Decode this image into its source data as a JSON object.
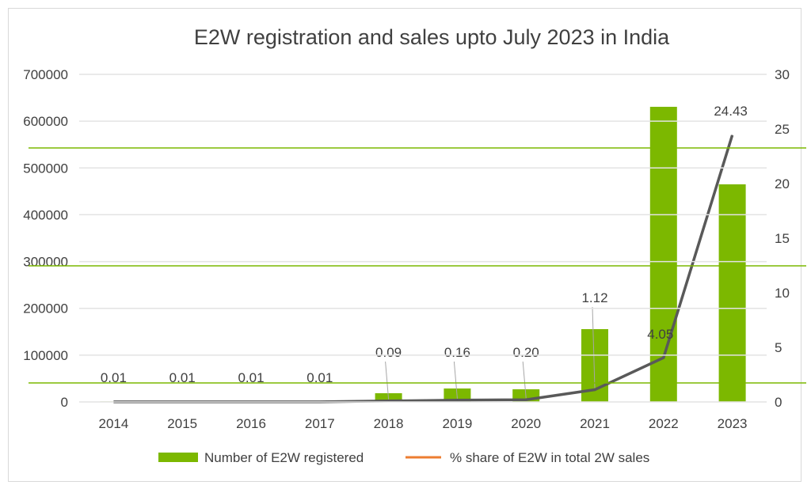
{
  "chart_data": {
    "type": "bar+line",
    "title": "E2W registration and sales upto July 2023 in India",
    "categories": [
      "2014",
      "2015",
      "2016",
      "2017",
      "2018",
      "2019",
      "2020",
      "2021",
      "2022",
      "2023"
    ],
    "series": [
      {
        "name": "Number of E2W registered",
        "type": "bar",
        "axis": "left",
        "color": "#7cb800",
        "values": [
          1000,
          1000,
          1200,
          1500,
          18600,
          28700,
          27000,
          155600,
          630700,
          465000
        ]
      },
      {
        "name": "% share of E2W in total 2W sales",
        "type": "line",
        "axis": "right",
        "color": "#595959",
        "legend_color": "#ed7d31",
        "values": [
          0.01,
          0.01,
          0.01,
          0.01,
          0.09,
          0.16,
          0.2,
          1.12,
          4.05,
          24.43
        ],
        "data_labels": [
          "0.01",
          "0.01",
          "0.01",
          "0.01",
          "0.09",
          "0.16",
          "0.20",
          "1.12",
          "4.05",
          "24.43"
        ]
      }
    ],
    "y_left": {
      "range": [
        0,
        700000
      ],
      "ticks": [
        "0",
        "100000",
        "200000",
        "300000",
        "400000",
        "500000",
        "600000",
        "700000"
      ]
    },
    "y_right": {
      "range": [
        0,
        30
      ],
      "ticks": [
        "0",
        "5",
        "10",
        "15",
        "20",
        "25",
        "30"
      ]
    },
    "grid": true,
    "legend": "bottom"
  }
}
